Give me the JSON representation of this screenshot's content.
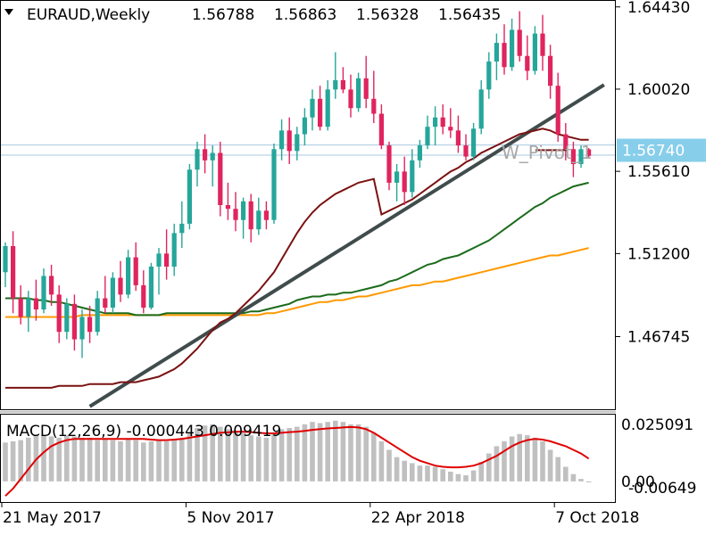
{
  "header": {
    "symbol": "EURAUD,Weekly",
    "open": "1.56788",
    "high": "1.56863",
    "low": "1.56328",
    "close": "1.56435"
  },
  "current_price_label": "1.56740",
  "pivot_label": "W_Pivot_1",
  "macd_label": "MACD(12,26,9) -0.000443 0.009419",
  "colors": {
    "bull": "#26a69a",
    "bear": "#e0245e",
    "ma_fast": "#7b1111",
    "ma_mid": "#1b6b1b",
    "ma_slow": "#ff9900",
    "trendline": "#404c4c",
    "signal": "#e00000",
    "histogram": "#c0c0c0",
    "current_price_bg": "#87ceeb",
    "hline": "#a8c8e0"
  },
  "chart_data": [
    {
      "type": "candlestick",
      "title": "EURAUD,Weekly",
      "y_ticks": [
        "1.64430",
        "1.60020",
        "1.55610",
        "1.51200",
        "1.46745"
      ],
      "y_tick_values": [
        1.6443,
        1.6002,
        1.5561,
        1.512,
        1.46745
      ],
      "ylim": [
        1.428,
        1.648
      ],
      "x_ticks": [
        "21 May 2017",
        "5 Nov 2017",
        "22 Apr 2018",
        "7 Oct 2018"
      ],
      "x_tick_index": [
        0,
        24,
        48,
        72
      ],
      "horizontal_lines": [
        1.5702,
        1.5648
      ],
      "pivot_level": 1.5675,
      "current_price": 1.5674,
      "candles": [
        [
          1.502,
          1.518,
          1.494,
          1.516
        ],
        [
          1.516,
          1.524,
          1.48,
          1.488
        ],
        [
          1.488,
          1.495,
          1.474,
          1.478
        ],
        [
          1.478,
          1.492,
          1.47,
          1.488
        ],
        [
          1.488,
          1.498,
          1.476,
          1.482
        ],
        [
          1.482,
          1.504,
          1.48,
          1.5
        ],
        [
          1.5,
          1.506,
          1.484,
          1.49
        ],
        [
          1.49,
          1.495,
          1.464,
          1.47
        ],
        [
          1.47,
          1.488,
          1.466,
          1.485
        ],
        [
          1.485,
          1.49,
          1.46,
          1.466
        ],
        [
          1.466,
          1.482,
          1.456,
          1.478
        ],
        [
          1.478,
          1.484,
          1.464,
          1.47
        ],
        [
          1.47,
          1.492,
          1.468,
          1.488
        ],
        [
          1.488,
          1.5,
          1.48,
          1.483
        ],
        [
          1.483,
          1.502,
          1.48,
          1.499
        ],
        [
          1.499,
          1.508,
          1.486,
          1.49
        ],
        [
          1.49,
          1.514,
          1.488,
          1.51
        ],
        [
          1.51,
          1.518,
          1.492,
          1.495
        ],
        [
          1.495,
          1.503,
          1.48,
          1.483
        ],
        [
          1.483,
          1.507,
          1.482,
          1.505
        ],
        [
          1.505,
          1.515,
          1.49,
          1.512
        ],
        [
          1.512,
          1.525,
          1.498,
          1.505
        ],
        [
          1.505,
          1.528,
          1.5,
          1.523
        ],
        [
          1.523,
          1.54,
          1.515,
          1.528
        ],
        [
          1.528,
          1.56,
          1.525,
          1.557
        ],
        [
          1.557,
          1.572,
          1.548,
          1.568
        ],
        [
          1.568,
          1.576,
          1.555,
          1.562
        ],
        [
          1.562,
          1.57,
          1.548,
          1.566
        ],
        [
          1.566,
          1.572,
          1.532,
          1.538
        ],
        [
          1.538,
          1.55,
          1.53,
          1.536
        ],
        [
          1.536,
          1.545,
          1.524,
          1.53
        ],
        [
          1.53,
          1.542,
          1.52,
          1.54
        ],
        [
          1.54,
          1.544,
          1.518,
          1.525
        ],
        [
          1.525,
          1.542,
          1.522,
          1.535
        ],
        [
          1.535,
          1.54,
          1.525,
          1.53
        ],
        [
          1.53,
          1.571,
          1.528,
          1.568
        ],
        [
          1.568,
          1.584,
          1.562,
          1.578
        ],
        [
          1.578,
          1.585,
          1.56,
          1.567
        ],
        [
          1.567,
          1.58,
          1.562,
          1.576
        ],
        [
          1.576,
          1.59,
          1.57,
          1.585
        ],
        [
          1.585,
          1.6,
          1.578,
          1.595
        ],
        [
          1.595,
          1.602,
          1.578,
          1.58
        ],
        [
          1.58,
          1.605,
          1.578,
          1.6
        ],
        [
          1.6,
          1.62,
          1.595,
          1.605
        ],
        [
          1.605,
          1.612,
          1.598,
          1.6
        ],
        [
          1.6,
          1.608,
          1.585,
          1.59
        ],
        [
          1.59,
          1.609,
          1.588,
          1.606
        ],
        [
          1.606,
          1.618,
          1.59,
          1.595
        ],
        [
          1.595,
          1.61,
          1.582,
          1.587
        ],
        [
          1.587,
          1.592,
          1.568,
          1.57
        ],
        [
          1.57,
          1.572,
          1.546,
          1.55
        ],
        [
          1.55,
          1.56,
          1.54,
          1.556
        ],
        [
          1.556,
          1.564,
          1.538,
          1.545
        ],
        [
          1.545,
          1.568,
          1.542,
          1.562
        ],
        [
          1.562,
          1.573,
          1.558,
          1.57
        ],
        [
          1.57,
          1.586,
          1.568,
          1.58
        ],
        [
          1.58,
          1.591,
          1.57,
          1.585
        ],
        [
          1.585,
          1.592,
          1.576,
          1.58
        ],
        [
          1.58,
          1.59,
          1.574,
          1.578
        ],
        [
          1.578,
          1.586,
          1.566,
          1.57
        ],
        [
          1.57,
          1.576,
          1.562,
          1.564
        ],
        [
          1.564,
          1.582,
          1.562,
          1.579
        ],
        [
          1.579,
          1.605,
          1.576,
          1.6
        ],
        [
          1.6,
          1.62,
          1.595,
          1.615
        ],
        [
          1.615,
          1.63,
          1.605,
          1.625
        ],
        [
          1.625,
          1.635,
          1.608,
          1.612
        ],
        [
          1.612,
          1.638,
          1.61,
          1.632
        ],
        [
          1.632,
          1.642,
          1.615,
          1.618
        ],
        [
          1.618,
          1.629,
          1.605,
          1.61
        ],
        [
          1.61,
          1.634,
          1.608,
          1.63
        ],
        [
          1.63,
          1.64,
          1.61,
          1.618
        ],
        [
          1.618,
          1.624,
          1.595,
          1.602
        ],
        [
          1.602,
          1.609,
          1.572,
          1.576
        ],
        [
          1.576,
          1.582,
          1.562,
          1.568
        ],
        [
          1.568,
          1.572,
          1.553,
          1.56
        ],
        [
          1.56,
          1.57,
          1.558,
          1.568
        ],
        [
          1.5679,
          1.5686,
          1.5633,
          1.5644
        ]
      ],
      "ma_fast": [
        1.44,
        1.44,
        1.44,
        1.44,
        1.44,
        1.44,
        1.44,
        1.441,
        1.441,
        1.441,
        1.441,
        1.442,
        1.442,
        1.442,
        1.442,
        1.443,
        1.443,
        1.443,
        1.444,
        1.445,
        1.446,
        1.448,
        1.45,
        1.453,
        1.457,
        1.461,
        1.466,
        1.471,
        1.475,
        1.477,
        1.48,
        1.484,
        1.488,
        1.492,
        1.497,
        1.502,
        1.509,
        1.516,
        1.523,
        1.529,
        1.534,
        1.538,
        1.541,
        1.544,
        1.546,
        1.548,
        1.55,
        1.551,
        1.552,
        1.533,
        1.535,
        1.537,
        1.539,
        1.541,
        1.544,
        1.547,
        1.55,
        1.553,
        1.556,
        1.558,
        1.561,
        1.563,
        1.566,
        1.568,
        1.57,
        1.572,
        1.574,
        1.576,
        1.577,
        1.578,
        1.579,
        1.578,
        1.576,
        1.575,
        1.574,
        1.573,
        1.573
      ],
      "ma_mid": [
        1.488,
        1.488,
        1.488,
        1.488,
        1.487,
        1.487,
        1.486,
        1.486,
        1.485,
        1.484,
        1.483,
        1.482,
        1.481,
        1.48,
        1.48,
        1.48,
        1.48,
        1.479,
        1.479,
        1.479,
        1.479,
        1.48,
        1.48,
        1.48,
        1.48,
        1.48,
        1.48,
        1.48,
        1.48,
        1.48,
        1.48,
        1.48,
        1.481,
        1.481,
        1.482,
        1.483,
        1.484,
        1.485,
        1.487,
        1.488,
        1.489,
        1.489,
        1.49,
        1.49,
        1.491,
        1.491,
        1.492,
        1.493,
        1.494,
        1.495,
        1.497,
        1.498,
        1.5,
        1.502,
        1.504,
        1.506,
        1.507,
        1.509,
        1.51,
        1.511,
        1.513,
        1.515,
        1.517,
        1.519,
        1.522,
        1.525,
        1.528,
        1.531,
        1.534,
        1.537,
        1.539,
        1.542,
        1.544,
        1.546,
        1.548,
        1.549,
        1.55
      ],
      "ma_slow": [
        1.478,
        1.478,
        1.478,
        1.478,
        1.478,
        1.478,
        1.478,
        1.478,
        1.478,
        1.478,
        1.479,
        1.479,
        1.479,
        1.479,
        1.479,
        1.479,
        1.479,
        1.479,
        1.479,
        1.479,
        1.479,
        1.479,
        1.479,
        1.479,
        1.479,
        1.479,
        1.479,
        1.479,
        1.479,
        1.479,
        1.479,
        1.479,
        1.479,
        1.479,
        1.48,
        1.48,
        1.481,
        1.482,
        1.483,
        1.484,
        1.485,
        1.486,
        1.486,
        1.487,
        1.487,
        1.488,
        1.489,
        1.489,
        1.49,
        1.491,
        1.492,
        1.493,
        1.494,
        1.495,
        1.495,
        1.496,
        1.497,
        1.497,
        1.498,
        1.499,
        1.5,
        1.501,
        1.502,
        1.503,
        1.504,
        1.505,
        1.506,
        1.507,
        1.508,
        1.509,
        1.51,
        1.511,
        1.511,
        1.512,
        1.513,
        1.514,
        1.515
      ],
      "trendline": {
        "from_index": 11,
        "from_price": 1.43,
        "to_index": 78,
        "to_price": 1.6025
      }
    },
    {
      "type": "bar",
      "title": "MACD(12,26,9) -0.000443 0.009419",
      "y_ticks": [
        "0.025091",
        "0.00",
        "-0.00649"
      ],
      "ylim": [
        -0.0085,
        0.0275
      ],
      "histogram": [
        0.016,
        0.0165,
        0.017,
        0.018,
        0.019,
        0.019,
        0.0185,
        0.018,
        0.019,
        0.0185,
        0.018,
        0.018,
        0.017,
        0.0175,
        0.017,
        0.0165,
        0.0175,
        0.017,
        0.016,
        0.0165,
        0.017,
        0.0165,
        0.017,
        0.018,
        0.02,
        0.022,
        0.023,
        0.0235,
        0.0225,
        0.0215,
        0.0205,
        0.02,
        0.019,
        0.0185,
        0.018,
        0.02,
        0.0215,
        0.022,
        0.0225,
        0.0235,
        0.0245,
        0.024,
        0.0245,
        0.025,
        0.0245,
        0.0235,
        0.0235,
        0.0225,
        0.02,
        0.0165,
        0.013,
        0.01,
        0.0085,
        0.0075,
        0.0065,
        0.0065,
        0.006,
        0.005,
        0.004,
        0.003,
        0.0025,
        0.0045,
        0.008,
        0.0115,
        0.0145,
        0.0165,
        0.0185,
        0.0195,
        0.019,
        0.018,
        0.0165,
        0.013,
        0.01,
        0.006,
        0.003,
        0.001,
        -0.0004
      ],
      "signal": [
        -0.006,
        -0.003,
        0.001,
        0.005,
        0.009,
        0.012,
        0.0145,
        0.016,
        0.017,
        0.0175,
        0.0175,
        0.0175,
        0.0175,
        0.0175,
        0.0175,
        0.0175,
        0.0175,
        0.0175,
        0.0175,
        0.0172,
        0.017,
        0.017,
        0.0172,
        0.0175,
        0.018,
        0.0185,
        0.019,
        0.0195,
        0.02,
        0.0202,
        0.0205,
        0.0205,
        0.0203,
        0.02,
        0.0198,
        0.0198,
        0.02,
        0.0203,
        0.0205,
        0.0208,
        0.0212,
        0.0215,
        0.0218,
        0.022,
        0.0222,
        0.0224,
        0.0222,
        0.0215,
        0.02,
        0.018,
        0.016,
        0.014,
        0.012,
        0.01,
        0.0085,
        0.0075,
        0.0065,
        0.006,
        0.0058,
        0.0058,
        0.006,
        0.0065,
        0.0075,
        0.009,
        0.0105,
        0.0125,
        0.0145,
        0.016,
        0.017,
        0.0175,
        0.0172,
        0.0165,
        0.0155,
        0.0145,
        0.013,
        0.0115,
        0.0094
      ]
    }
  ]
}
